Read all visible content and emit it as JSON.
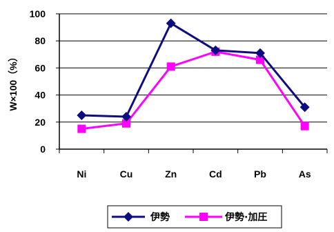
{
  "chart_data": {
    "type": "line",
    "categories": [
      "Ni",
      "Cu",
      "Zn",
      "Cd",
      "Pb",
      "As"
    ],
    "series": [
      {
        "name": "伊勢",
        "values": [
          25,
          24,
          93,
          73,
          71,
          31
        ],
        "color": "#0D0D80",
        "marker": "diamond"
      },
      {
        "name": "伊勢·加圧",
        "values": [
          15,
          19,
          61,
          72,
          66,
          17
        ],
        "color": "#FF00FF",
        "marker": "square"
      }
    ],
    "ylabel": "W×100（%）",
    "xlabel": "",
    "ylim": [
      0,
      100
    ],
    "yticks": [
      0,
      20,
      40,
      60,
      80,
      100
    ],
    "grid": "horizontal",
    "legend": "bottom"
  }
}
